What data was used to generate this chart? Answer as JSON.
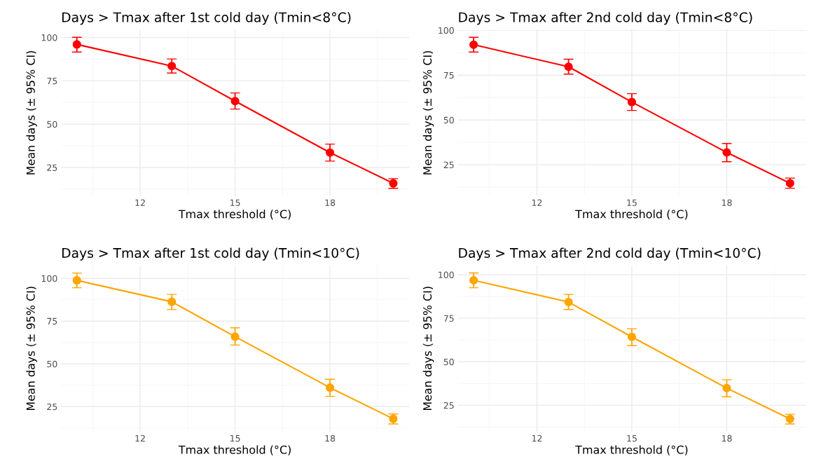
{
  "chart_data": [
    {
      "type": "line",
      "title": "Days > Tmax after 1st cold day (Tmin<8°C)",
      "xlabel": "Tmax threshold (°C)",
      "ylabel": "Mean days (± 95% CI)",
      "x": [
        10,
        13,
        15,
        18,
        20
      ],
      "marker": "circle",
      "grid": true,
      "xlim": [
        9.5,
        20.5
      ],
      "xticks": [
        12,
        15,
        18
      ],
      "ylim": [
        8.7,
        104.4
      ],
      "yticks": [
        25,
        50,
        75,
        100
      ],
      "series": [
        {
          "color": "#ff0000",
          "values": [
            96.0,
            83.5,
            63.3,
            33.6,
            15.9
          ],
          "errors": [
            [
              91.6,
              100.1
            ],
            [
              79.5,
              87.6
            ],
            [
              58.7,
              68.0
            ],
            [
              28.7,
              38.5
            ],
            [
              13.0,
              18.6
            ]
          ]
        }
      ]
    },
    {
      "type": "line",
      "title": "Days > Tmax after 2nd cold day (Tmin<8°C)",
      "xlabel": "Tmax threshold (°C)",
      "ylabel": "Mean days (± 95% CI)",
      "x": [
        10,
        13,
        15,
        18,
        20
      ],
      "marker": "circle",
      "grid": true,
      "xlim": [
        9.5,
        20.5
      ],
      "xticks": [
        12,
        15,
        18
      ],
      "ylim": [
        7.7,
        100.3
      ],
      "yticks": [
        25,
        50,
        75,
        100
      ],
      "series": [
        {
          "color": "#ff0000",
          "values": [
            92.0,
            79.7,
            60.0,
            31.9,
            14.7
          ],
          "errors": [
            [
              87.9,
              96.1
            ],
            [
              75.6,
              83.9
            ],
            [
              55.3,
              64.7
            ],
            [
              26.7,
              36.9
            ],
            [
              11.9,
              17.6
            ]
          ]
        }
      ]
    },
    {
      "type": "line",
      "title": "Days > Tmax after 1st cold day (Tmin<10°C)",
      "xlabel": "Tmax threshold (°C)",
      "ylabel": "Mean days (± 95% CI)",
      "x": [
        10,
        13,
        15,
        18,
        20
      ],
      "marker": "circle",
      "grid": true,
      "xlim": [
        9.5,
        20.5
      ],
      "xticks": [
        12,
        15,
        18
      ],
      "ylim": [
        10.5,
        107.5
      ],
      "yticks": [
        25,
        50,
        75,
        100
      ],
      "series": [
        {
          "color": "#ffa500",
          "values": [
            98.8,
            86.3,
            65.9,
            36.1,
            17.9
          ],
          "errors": [
            [
              94.5,
              103.1
            ],
            [
              81.8,
              90.6
            ],
            [
              61.0,
              71.1
            ],
            [
              31.0,
              41.0
            ],
            [
              14.9,
              20.7
            ]
          ]
        }
      ]
    },
    {
      "type": "line",
      "title": "Days > Tmax after 2nd cold day (Tmin<10°C)",
      "xlabel": "Tmax threshold (°C)",
      "ylabel": "Mean days (± 95% CI)",
      "x": [
        10,
        13,
        15,
        18,
        20
      ],
      "marker": "circle",
      "grid": true,
      "xlim": [
        9.5,
        20.5
      ],
      "xticks": [
        12,
        15,
        18
      ],
      "ylim": [
        10.0,
        105.3
      ],
      "yticks": [
        25,
        50,
        75,
        100
      ],
      "series": [
        {
          "color": "#ffa500",
          "values": [
            96.8,
            84.3,
            64.3,
            34.9,
            17.2
          ],
          "errors": [
            [
              92.5,
              101.0
            ],
            [
              80.0,
              88.7
            ],
            [
              59.3,
              69.0
            ],
            [
              29.9,
              39.7
            ],
            [
              14.3,
              19.9
            ]
          ]
        }
      ]
    }
  ]
}
